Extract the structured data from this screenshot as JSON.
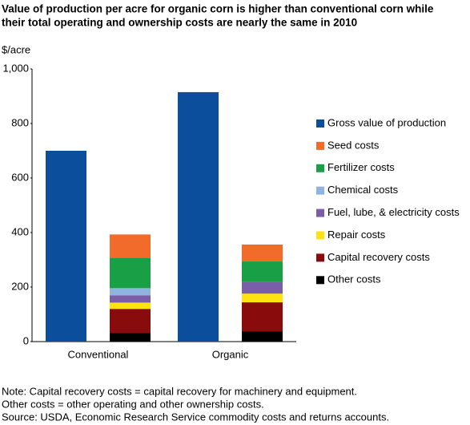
{
  "chart_data": {
    "type": "bar",
    "title": [
      "Value of production per acre for organic corn is higher than conventional corn while",
      "their total operating and ownership costs are nearly the same in 2010"
    ],
    "y_label": "$/acre",
    "categories": [
      "Conventional",
      "Organic"
    ],
    "series": [
      {
        "name": "Gross value of production",
        "color": "#0b4f9c",
        "values": [
          700,
          915
        ]
      },
      {
        "name": "Seed costs",
        "color": "#f26b2a",
        "values": [
          85,
          62
        ]
      },
      {
        "name": "Fertilizer costs",
        "color": "#19a046",
        "values": [
          112,
          76
        ]
      },
      {
        "name": "Chemical costs",
        "color": "#8fb4e0",
        "values": [
          26,
          0
        ]
      },
      {
        "name": "Fuel, lube, & electricity costs",
        "color": "#7a5ea8",
        "values": [
          27,
          42
        ]
      },
      {
        "name": "Repair costs",
        "color": "#ffe30f",
        "values": [
          23,
          32
        ]
      },
      {
        "name": "Capital recovery costs",
        "color": "#8a0b0b",
        "values": [
          88,
          106
        ]
      },
      {
        "name": "Other costs",
        "color": "#000000",
        "values": [
          32,
          38
        ]
      }
    ],
    "ylim": [
      0,
      1000
    ],
    "yticks": [
      0,
      200,
      400,
      600,
      800,
      {
        "value": 1000,
        "label": "1,000"
      }
    ],
    "notes": [
      "Note: Capital recovery costs  = capital recovery for machinery and equipment.",
      "Other costs = other operating and other ownership costs.",
      "Source: USDA, Economic Research Service commodity costs and returns accounts."
    ]
  }
}
